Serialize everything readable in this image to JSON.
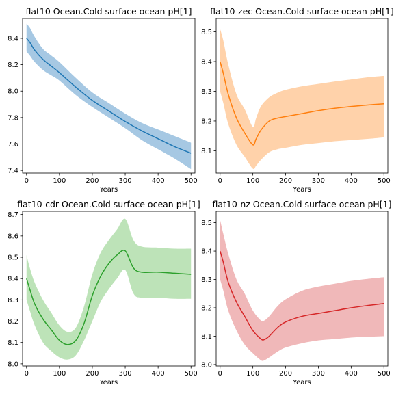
{
  "chart_data": [
    {
      "type": "line",
      "title": "flat10 Ocean.Cold surface ocean pH[1]",
      "xlabel": "Years",
      "ylabel": "",
      "xlim": [
        -12,
        512
      ],
      "ylim": [
        7.38,
        8.55
      ],
      "xticks": [
        0,
        100,
        200,
        300,
        400,
        500
      ],
      "yticks": [
        7.4,
        7.6,
        7.8,
        8.0,
        8.2,
        8.4
      ],
      "tick_decimals": 1,
      "color": "#1f77b4",
      "band_color": "#a6c8e3",
      "series": [
        {
          "x": [
            0,
            10,
            25,
            50,
            75,
            100,
            150,
            200,
            250,
            300,
            350,
            400,
            450,
            500
          ],
          "y": [
            8.4,
            8.37,
            8.31,
            8.24,
            8.19,
            8.14,
            8.03,
            7.93,
            7.85,
            7.77,
            7.7,
            7.64,
            7.58,
            7.53
          ],
          "lower": [
            8.3,
            8.27,
            8.22,
            8.16,
            8.12,
            8.08,
            7.97,
            7.88,
            7.8,
            7.72,
            7.63,
            7.56,
            7.49,
            7.41
          ],
          "upper": [
            8.51,
            8.48,
            8.41,
            8.32,
            8.27,
            8.22,
            8.1,
            7.99,
            7.91,
            7.83,
            7.76,
            7.71,
            7.66,
            7.61
          ]
        }
      ]
    },
    {
      "type": "line",
      "title": "flat10-zec Ocean.Cold surface ocean pH[1]",
      "xlabel": "Years",
      "ylabel": "",
      "xlim": [
        -12,
        512
      ],
      "ylim": [
        8.025,
        8.545
      ],
      "xticks": [
        0,
        100,
        200,
        300,
        400,
        500
      ],
      "yticks": [
        8.1,
        8.2,
        8.3,
        8.4,
        8.5
      ],
      "tick_decimals": 1,
      "color": "#ff7f0e",
      "band_color": "#ffd2aa",
      "series": [
        {
          "x": [
            0,
            10,
            25,
            50,
            75,
            100,
            110,
            125,
            150,
            175,
            200,
            250,
            300,
            350,
            400,
            450,
            500
          ],
          "y": [
            8.4,
            8.36,
            8.29,
            8.21,
            8.16,
            8.12,
            8.14,
            8.17,
            8.2,
            8.21,
            8.215,
            8.225,
            8.235,
            8.243,
            8.249,
            8.254,
            8.258
          ],
          "lower": [
            8.3,
            8.26,
            8.19,
            8.12,
            8.08,
            8.04,
            8.05,
            8.07,
            8.095,
            8.105,
            8.11,
            8.12,
            8.126,
            8.132,
            8.136,
            8.14,
            8.145
          ],
          "upper": [
            8.51,
            8.47,
            8.39,
            8.29,
            8.24,
            8.18,
            8.21,
            8.25,
            8.28,
            8.295,
            8.305,
            8.317,
            8.325,
            8.333,
            8.34,
            8.347,
            8.352
          ]
        }
      ]
    },
    {
      "type": "line",
      "title": "flat10-cdr Ocean.Cold surface ocean pH[1]",
      "xlabel": "Years",
      "ylabel": "",
      "xlim": [
        -12,
        512
      ],
      "ylim": [
        7.99,
        8.715
      ],
      "xticks": [
        0,
        100,
        200,
        300,
        400,
        500
      ],
      "yticks": [
        8.0,
        8.1,
        8.2,
        8.3,
        8.4,
        8.5,
        8.6,
        8.7
      ],
      "tick_decimals": 1,
      "color": "#2ca02c",
      "band_color": "#bde3b8",
      "series": [
        {
          "x": [
            0,
            10,
            25,
            50,
            75,
            100,
            125,
            150,
            175,
            200,
            225,
            250,
            275,
            300,
            325,
            350,
            400,
            450,
            500
          ],
          "y": [
            8.4,
            8.35,
            8.28,
            8.21,
            8.16,
            8.11,
            8.09,
            8.11,
            8.19,
            8.32,
            8.41,
            8.47,
            8.51,
            8.53,
            8.45,
            8.43,
            8.43,
            8.425,
            8.42
          ],
          "lower": [
            8.3,
            8.25,
            8.18,
            8.1,
            8.06,
            8.03,
            8.02,
            8.04,
            8.11,
            8.2,
            8.29,
            8.35,
            8.4,
            8.44,
            8.33,
            8.31,
            8.31,
            8.305,
            8.305
          ],
          "upper": [
            8.51,
            8.45,
            8.38,
            8.3,
            8.24,
            8.18,
            8.15,
            8.17,
            8.27,
            8.42,
            8.52,
            8.58,
            8.63,
            8.68,
            8.58,
            8.55,
            8.545,
            8.54,
            8.54
          ]
        }
      ]
    },
    {
      "type": "line",
      "title": "flat10-nz Ocean.Cold surface ocean pH[1]",
      "xlabel": "Years",
      "ylabel": "",
      "xlim": [
        -12,
        512
      ],
      "ylim": [
        7.995,
        8.54
      ],
      "xticks": [
        0,
        100,
        200,
        300,
        400,
        500
      ],
      "yticks": [
        8.0,
        8.1,
        8.2,
        8.3,
        8.4,
        8.5
      ],
      "tick_decimals": 1,
      "color": "#d62728",
      "band_color": "#f0b8b9",
      "series": [
        {
          "x": [
            0,
            10,
            25,
            50,
            75,
            100,
            125,
            135,
            150,
            175,
            200,
            250,
            300,
            350,
            400,
            450,
            500
          ],
          "y": [
            8.4,
            8.36,
            8.29,
            8.22,
            8.17,
            8.12,
            8.09,
            8.088,
            8.1,
            8.13,
            8.15,
            8.17,
            8.18,
            8.19,
            8.2,
            8.208,
            8.215
          ],
          "lower": [
            8.3,
            8.26,
            8.19,
            8.12,
            8.07,
            8.04,
            8.015,
            8.015,
            8.025,
            8.045,
            8.06,
            8.075,
            8.085,
            8.09,
            8.095,
            8.098,
            8.1
          ],
          "upper": [
            8.51,
            8.46,
            8.39,
            8.3,
            8.25,
            8.19,
            8.155,
            8.155,
            8.17,
            8.205,
            8.23,
            8.26,
            8.275,
            8.285,
            8.295,
            8.302,
            8.308
          ]
        }
      ]
    }
  ]
}
